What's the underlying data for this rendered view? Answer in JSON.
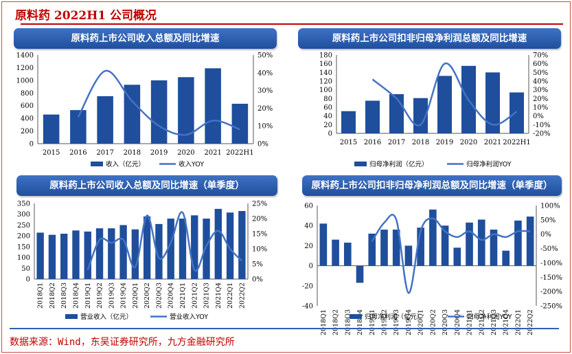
{
  "page": {
    "title": "原料药 2022H1 公司概况",
    "source": "数据来源：Wind，东吴证券研究所，九方金融研究所",
    "colors": {
      "bar": "#1f4e9c",
      "line": "#4472c4",
      "title_red": "#c00000",
      "panel": "#2c5fb3"
    }
  },
  "chart_data": [
    {
      "type": "bar",
      "title": "原料药上市公司收入总额及同比增速",
      "categories": [
        "2015",
        "2016",
        "2017",
        "2018",
        "2019",
        "2020",
        "2021",
        "2022H1"
      ],
      "series": [
        {
          "name": "收入（亿元）",
          "axis": "left",
          "kind": "bar",
          "values": [
            460,
            530,
            750,
            930,
            1000,
            1050,
            1190,
            630
          ]
        },
        {
          "name": "收入YOY",
          "axis": "right",
          "kind": "line",
          "values": [
            null,
            15,
            41,
            24,
            10,
            5,
            13,
            8
          ]
        }
      ],
      "ylim": [
        0,
        1400
      ],
      "yticks": [
        "0",
        "200",
        "400",
        "600",
        "800",
        "1000",
        "1200",
        "1400"
      ],
      "y2lim": [
        0,
        50
      ],
      "y2ticks": [
        "0%",
        "10%",
        "20%",
        "30%",
        "40%",
        "50%"
      ],
      "legend": "bottom"
    },
    {
      "type": "bar",
      "title": "原料药上市公司扣非归母净利润总额及同比增速",
      "categories": [
        "2015",
        "2016",
        "2017",
        "2018",
        "2019",
        "2020",
        "2021",
        "2022H1"
      ],
      "series": [
        {
          "name": "归母净利润（亿元）",
          "axis": "left",
          "kind": "bar",
          "values": [
            51,
            75,
            90,
            81,
            132,
            155,
            140,
            94
          ]
        },
        {
          "name": "归母净利润YOY",
          "axis": "right",
          "kind": "line",
          "values": [
            null,
            42,
            20,
            -10,
            60,
            18,
            -10,
            5
          ]
        }
      ],
      "ylim": [
        0,
        180
      ],
      "yticks": [
        "0",
        "20",
        "40",
        "60",
        "80",
        "100",
        "120",
        "140",
        "160",
        "180"
      ],
      "y2lim": [
        -20,
        70
      ],
      "y2ticks": [
        "-20%",
        "-10%",
        "0%",
        "10%",
        "20%",
        "30%",
        "40%",
        "50%",
        "60%",
        "70%"
      ],
      "legend": "bottom"
    },
    {
      "type": "bar",
      "title": "原料药上市公司收入总额及同比增速（单季度）",
      "categories": [
        "2018Q1",
        "2018Q2",
        "2018Q3",
        "2018Q4",
        "2019Q1",
        "2019Q2",
        "2019Q3",
        "2019Q4",
        "2020Q1",
        "2020Q2",
        "2020Q3",
        "2020Q4",
        "2021Q1",
        "2021Q2",
        "2021Q3",
        "2021Q4",
        "2022Q1",
        "2022Q2"
      ],
      "series": [
        {
          "name": "营业收入（亿元）",
          "axis": "left",
          "kind": "bar",
          "values": [
            215,
            205,
            210,
            225,
            220,
            235,
            235,
            250,
            230,
            290,
            255,
            280,
            280,
            295,
            280,
            325,
            308,
            315
          ]
        },
        {
          "name": "营业收入YOY",
          "axis": "right",
          "kind": "line",
          "values": [
            null,
            null,
            null,
            null,
            3,
            13,
            12,
            13,
            4,
            21,
            7,
            12,
            22,
            3,
            11,
            16,
            10,
            6
          ]
        }
      ],
      "ylim": [
        0,
        350
      ],
      "yticks": [
        "0",
        "50",
        "100",
        "150",
        "200",
        "250",
        "300",
        "350"
      ],
      "y2lim": [
        0,
        25
      ],
      "y2ticks": [
        "0%",
        "5%",
        "10%",
        "15%",
        "20%",
        "25%"
      ],
      "legend": "bottom"
    },
    {
      "type": "bar",
      "title": "原料药上市公司扣非归母净利润总额及同比增速（单季度）",
      "categories": [
        "2018Q1",
        "2018Q2",
        "2018Q3",
        "2018Q4",
        "2019Q1",
        "2019Q2",
        "2019Q3",
        "2019Q4",
        "2020Q1",
        "2020Q2",
        "2020Q3",
        "2020Q4",
        "2021Q1",
        "2021Q2",
        "2021Q3",
        "2021Q4",
        "2022Q1",
        "2022Q2"
      ],
      "series": [
        {
          "name": "归母净利润（亿元）",
          "axis": "left",
          "kind": "bar",
          "values": [
            42,
            26,
            23,
            -17,
            32,
            36,
            36,
            20,
            38,
            56,
            40,
            18,
            43,
            46,
            36,
            15,
            45,
            49
          ]
        },
        {
          "name": "归母净利润YOY",
          "axis": "right",
          "kind": "line",
          "values": [
            null,
            null,
            null,
            null,
            -25,
            40,
            50,
            -205,
            12,
            55,
            10,
            -10,
            10,
            -20,
            0,
            -10,
            10,
            10
          ]
        }
      ],
      "ylim": [
        -40,
        60
      ],
      "yticks": [
        "-40",
        "-20",
        "0",
        "20",
        "40",
        "60"
      ],
      "y2lim": [
        -250,
        100
      ],
      "y2ticks": [
        "-250%",
        "-200%",
        "-150%",
        "-100%",
        "-50%",
        "0%",
        "50%",
        "100%"
      ],
      "legend": "bottom"
    }
  ]
}
